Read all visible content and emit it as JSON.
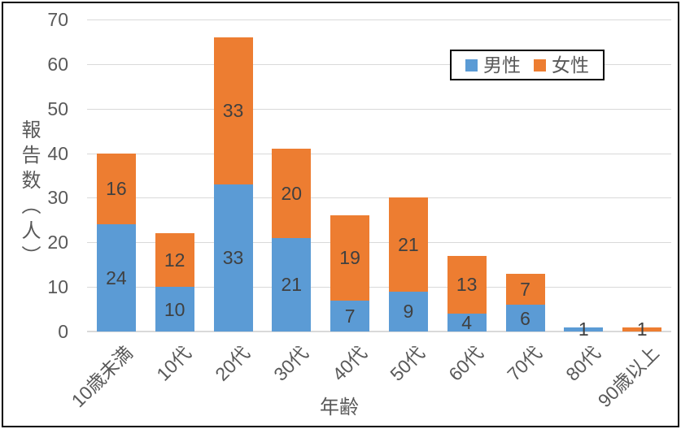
{
  "chart_data": {
    "type": "bar",
    "stacked": true,
    "title": "",
    "categories": [
      "10歳未満",
      "10代",
      "20代",
      "30代",
      "40代",
      "50代",
      "60代",
      "70代",
      "80代",
      "90歳以上"
    ],
    "series": [
      {
        "name": "男性",
        "color": "#5B9BD5",
        "values": [
          24,
          10,
          33,
          21,
          7,
          9,
          4,
          6,
          1,
          0
        ]
      },
      {
        "name": "女性",
        "color": "#ED7D31",
        "values": [
          16,
          12,
          33,
          20,
          19,
          21,
          13,
          7,
          0,
          1
        ]
      }
    ],
    "xlabel": "年齢",
    "ylabel": "報告数（人）",
    "ylim": [
      0,
      70
    ],
    "yticks": [
      0,
      10,
      20,
      30,
      40,
      50,
      60,
      70
    ],
    "grid": "horizontal",
    "legend_position": "upper-right",
    "data_labels": "center"
  },
  "colors": {
    "gridline": "#D9D9D9",
    "axis_text": "#595959",
    "data_label_text": "#404040",
    "legend_border": "#000000",
    "chart_border": "#000000",
    "background": "#FFFFFF"
  }
}
